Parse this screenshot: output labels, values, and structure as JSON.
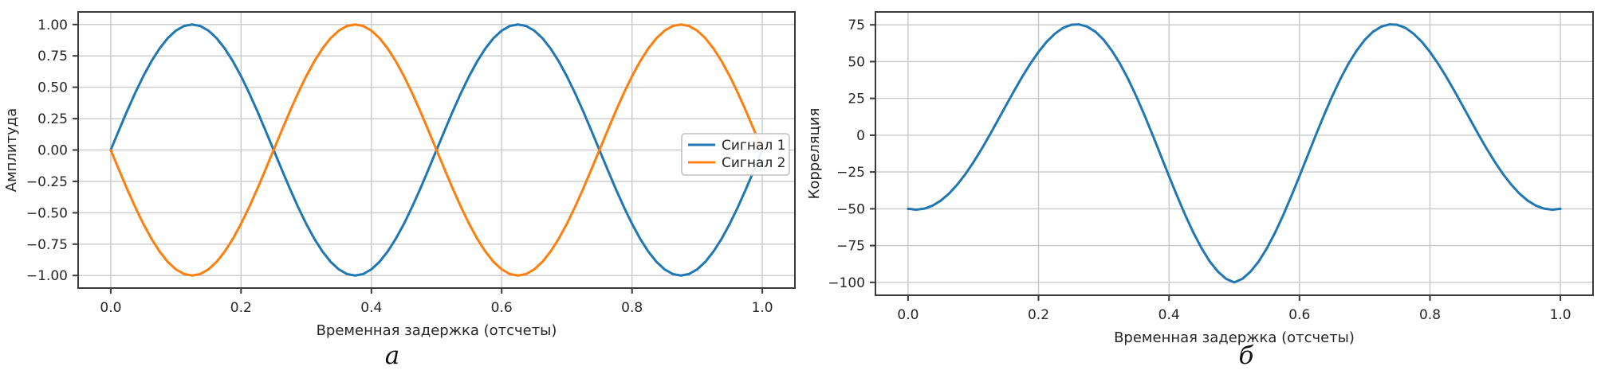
{
  "page": {
    "background": "#ffffff",
    "text_color": "#262626",
    "grid_color": "#c9c9c9",
    "spine_color": "#3a3a3a"
  },
  "captions": {
    "left": "а",
    "right": "б"
  },
  "chart_data": [
    {
      "type": "line",
      "title": "",
      "caption": "а",
      "xlabel": "Временная задержка (отсчеты)",
      "ylabel": "Амплитуда",
      "xlim": [
        -0.05,
        1.05
      ],
      "ylim": [
        -1.1,
        1.1
      ],
      "grid": true,
      "legend": {
        "position": "center right",
        "entries": [
          "Сигнал 1",
          "Сигнал 2"
        ]
      },
      "xticks": [
        0,
        0.2,
        0.4,
        0.6,
        0.8,
        1.0
      ],
      "xtick_labels": [
        "0.0",
        "0.2",
        "0.4",
        "0.6",
        "0.8",
        "1.0"
      ],
      "yticks": [
        1.0,
        0.75,
        0.5,
        0.25,
        0,
        -0.25,
        -0.5,
        -0.75,
        -1.0
      ],
      "ytick_labels": [
        "1.00",
        "0.75",
        "0.50",
        "0.25",
        "0.00",
        "−0.25",
        "−0.50",
        "−0.75",
        "−1.00"
      ],
      "x_start": 0,
      "x_step": 0.0125,
      "series": [
        {
          "name": "Сигнал 1",
          "color": "#1f77b4",
          "values": [
            0,
            0.156,
            0.309,
            0.454,
            0.588,
            0.707,
            0.809,
            0.891,
            0.951,
            0.988,
            1,
            0.988,
            0.951,
            0.891,
            0.809,
            0.707,
            0.588,
            0.454,
            0.309,
            0.156,
            0,
            -0.156,
            -0.309,
            -0.454,
            -0.588,
            -0.707,
            -0.809,
            -0.891,
            -0.951,
            -0.988,
            -1,
            -0.988,
            -0.951,
            -0.891,
            -0.809,
            -0.707,
            -0.588,
            -0.454,
            -0.309,
            -0.156,
            0,
            0.156,
            0.309,
            0.454,
            0.588,
            0.707,
            0.809,
            0.891,
            0.951,
            0.988,
            1,
            0.988,
            0.951,
            0.891,
            0.809,
            0.707,
            0.588,
            0.454,
            0.309,
            0.156,
            0,
            -0.156,
            -0.309,
            -0.454,
            -0.588,
            -0.707,
            -0.809,
            -0.891,
            -0.951,
            -0.988,
            -1,
            -0.988,
            -0.951,
            -0.891,
            -0.809,
            -0.707,
            -0.588,
            -0.454,
            -0.309,
            -0.156,
            0
          ]
        },
        {
          "name": "Сигнал 2",
          "color": "#ff7f0e",
          "values": [
            0,
            -0.156,
            -0.309,
            -0.454,
            -0.588,
            -0.707,
            -0.809,
            -0.891,
            -0.951,
            -0.988,
            -1,
            -0.988,
            -0.951,
            -0.891,
            -0.809,
            -0.707,
            -0.588,
            -0.454,
            -0.309,
            -0.156,
            0,
            0.156,
            0.309,
            0.454,
            0.588,
            0.707,
            0.809,
            0.891,
            0.951,
            0.988,
            1,
            0.988,
            0.951,
            0.891,
            0.809,
            0.707,
            0.588,
            0.454,
            0.309,
            0.156,
            0,
            -0.156,
            -0.309,
            -0.454,
            -0.588,
            -0.707,
            -0.809,
            -0.891,
            -0.951,
            -0.988,
            -1,
            -0.988,
            -0.951,
            -0.891,
            -0.809,
            -0.707,
            -0.588,
            -0.454,
            -0.309,
            -0.156,
            0,
            0.156,
            0.309,
            0.454,
            0.588,
            0.707,
            0.809,
            0.891,
            0.951,
            0.988,
            1,
            0.988,
            0.951,
            0.891,
            0.809,
            0.707,
            0.588,
            0.454,
            0.309,
            0.156,
            0
          ]
        }
      ]
    },
    {
      "type": "line",
      "title": "",
      "caption": "б",
      "xlabel": "Временная задержка (отсчеты)",
      "ylabel": "Корреляция",
      "xlim": [
        -0.05,
        1.05
      ],
      "ylim": [
        -108.75,
        83.75
      ],
      "grid": true,
      "legend": null,
      "xticks": [
        0,
        0.2,
        0.4,
        0.6,
        0.8,
        1.0
      ],
      "xtick_labels": [
        "0.0",
        "0.2",
        "0.4",
        "0.6",
        "0.8",
        "1.0"
      ],
      "yticks": [
        75,
        50,
        25,
        0,
        -25,
        -50,
        -75,
        -100
      ],
      "ytick_labels": [
        "75",
        "50",
        "25",
        "0",
        "−25",
        "−50",
        "−75",
        "−100"
      ],
      "x_start": 0,
      "x_step": 0.0125,
      "series": [
        {
          "name": "Корреляция",
          "color": "#1f77b4",
          "values": [
            -50,
            -50.6,
            -49.9,
            -47.9,
            -44.5,
            -39.8,
            -33.8,
            -26.7,
            -18.5,
            -9.6,
            0,
            10,
            20.1,
            30.1,
            39.7,
            48.6,
            56.6,
            63.5,
            68.9,
            72.9,
            75,
            75.3,
            73.7,
            70.2,
            64.7,
            57.4,
            48.5,
            38,
            26.3,
            13.5,
            0,
            -13.9,
            -27.8,
            -41.4,
            -54.4,
            -66.3,
            -76.9,
            -85.8,
            -92.7,
            -97.6,
            -100,
            -97.6,
            -92.7,
            -85.8,
            -76.9,
            -66.3,
            -54.4,
            -41.4,
            -27.8,
            -13.9,
            0,
            13.5,
            26.3,
            38,
            48.5,
            57.4,
            64.7,
            70.2,
            73.7,
            75.3,
            75,
            72.9,
            68.9,
            63.5,
            56.6,
            48.6,
            39.7,
            30.1,
            20.1,
            10,
            0,
            -9.6,
            -18.5,
            -26.7,
            -33.8,
            -39.8,
            -44.5,
            -47.9,
            -49.9,
            -50.6,
            -50
          ]
        }
      ]
    }
  ]
}
